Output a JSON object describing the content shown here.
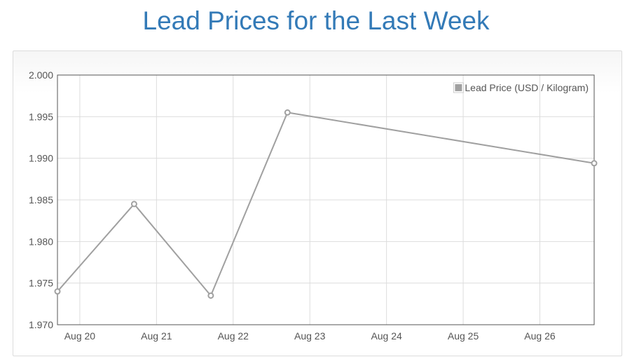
{
  "title": "Lead Prices for the Last Week",
  "chart_data": {
    "type": "line",
    "title": "Lead Prices for the Last Week",
    "xlabel": "",
    "ylabel": "",
    "x_ticks": [
      "Aug 20",
      "Aug 21",
      "Aug 22",
      "Aug 23",
      "Aug 24",
      "Aug 25",
      "Aug 26"
    ],
    "y_ticks": [
      "1.970",
      "1.975",
      "1.980",
      "1.985",
      "1.990",
      "1.995",
      "2.000"
    ],
    "ylim": [
      1.97,
      2.0
    ],
    "xlim": [
      "Aug 19 17:00",
      "Aug 26 17:00"
    ],
    "grid": true,
    "legend_position": "top-right",
    "series": [
      {
        "name": "Lead Price (USD / Kilogram)",
        "color": "#a0a0a0",
        "points": [
          {
            "x": "Aug 19 17:00",
            "y": 1.974
          },
          {
            "x": "Aug 20 17:00",
            "y": 1.9845
          },
          {
            "x": "Aug 21 17:00",
            "y": 1.9735
          },
          {
            "x": "Aug 22 17:00",
            "y": 1.9955
          },
          {
            "x": "Aug 26 17:00",
            "y": 1.9894
          }
        ]
      }
    ]
  }
}
